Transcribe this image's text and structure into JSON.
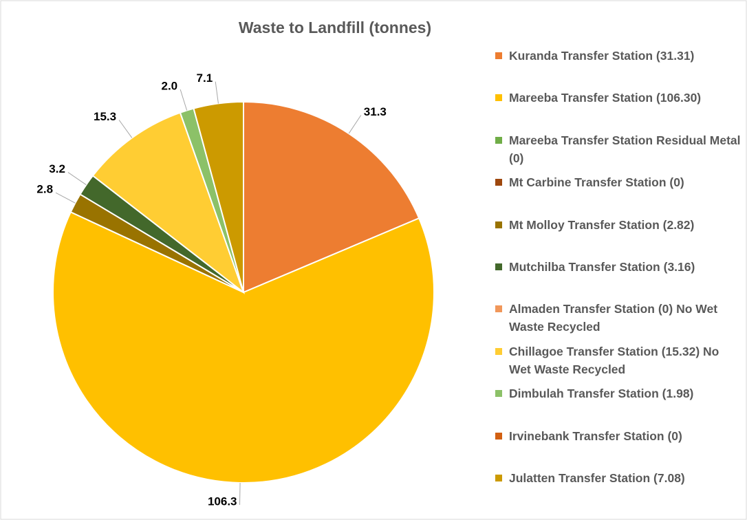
{
  "chart_data": {
    "type": "pie",
    "title": "Waste to Landfill (tonnes)",
    "categories": [
      "Kuranda Transfer Station (31.31)",
      "Mareeba Transfer Station (106.30)",
      "Mareeba Transfer Station Residual Metal (0)",
      "Mt Carbine Transfer Station (0)",
      "Mt Molloy Transfer Station (2.82)",
      "Mutchilba Transfer Station (3.16)",
      "Almaden Transfer Station (0) No Wet Waste Recycled",
      "Chillagoe Transfer Station (15.32) No Wet Waste Recycled",
      "Dimbulah Transfer Station (1.98)",
      "Irvinebank Transfer Station (0)",
      "Julatten Transfer Station (7.08)"
    ],
    "values": [
      31.31,
      106.3,
      0,
      0,
      2.82,
      3.16,
      0,
      15.32,
      1.98,
      0,
      7.08
    ],
    "value_labels": [
      "31.3",
      "106.3",
      null,
      null,
      "2.8",
      "3.2",
      null,
      "15.3",
      "2.0",
      null,
      "7.1"
    ],
    "colors": [
      "#ED7D31",
      "#FFC000",
      "#70AD47",
      "#9E480E",
      "#997300",
      "#43682B",
      "#F1975A",
      "#FFCD33",
      "#8CC168",
      "#D26012",
      "#CC9A00"
    ],
    "legend": "right"
  }
}
